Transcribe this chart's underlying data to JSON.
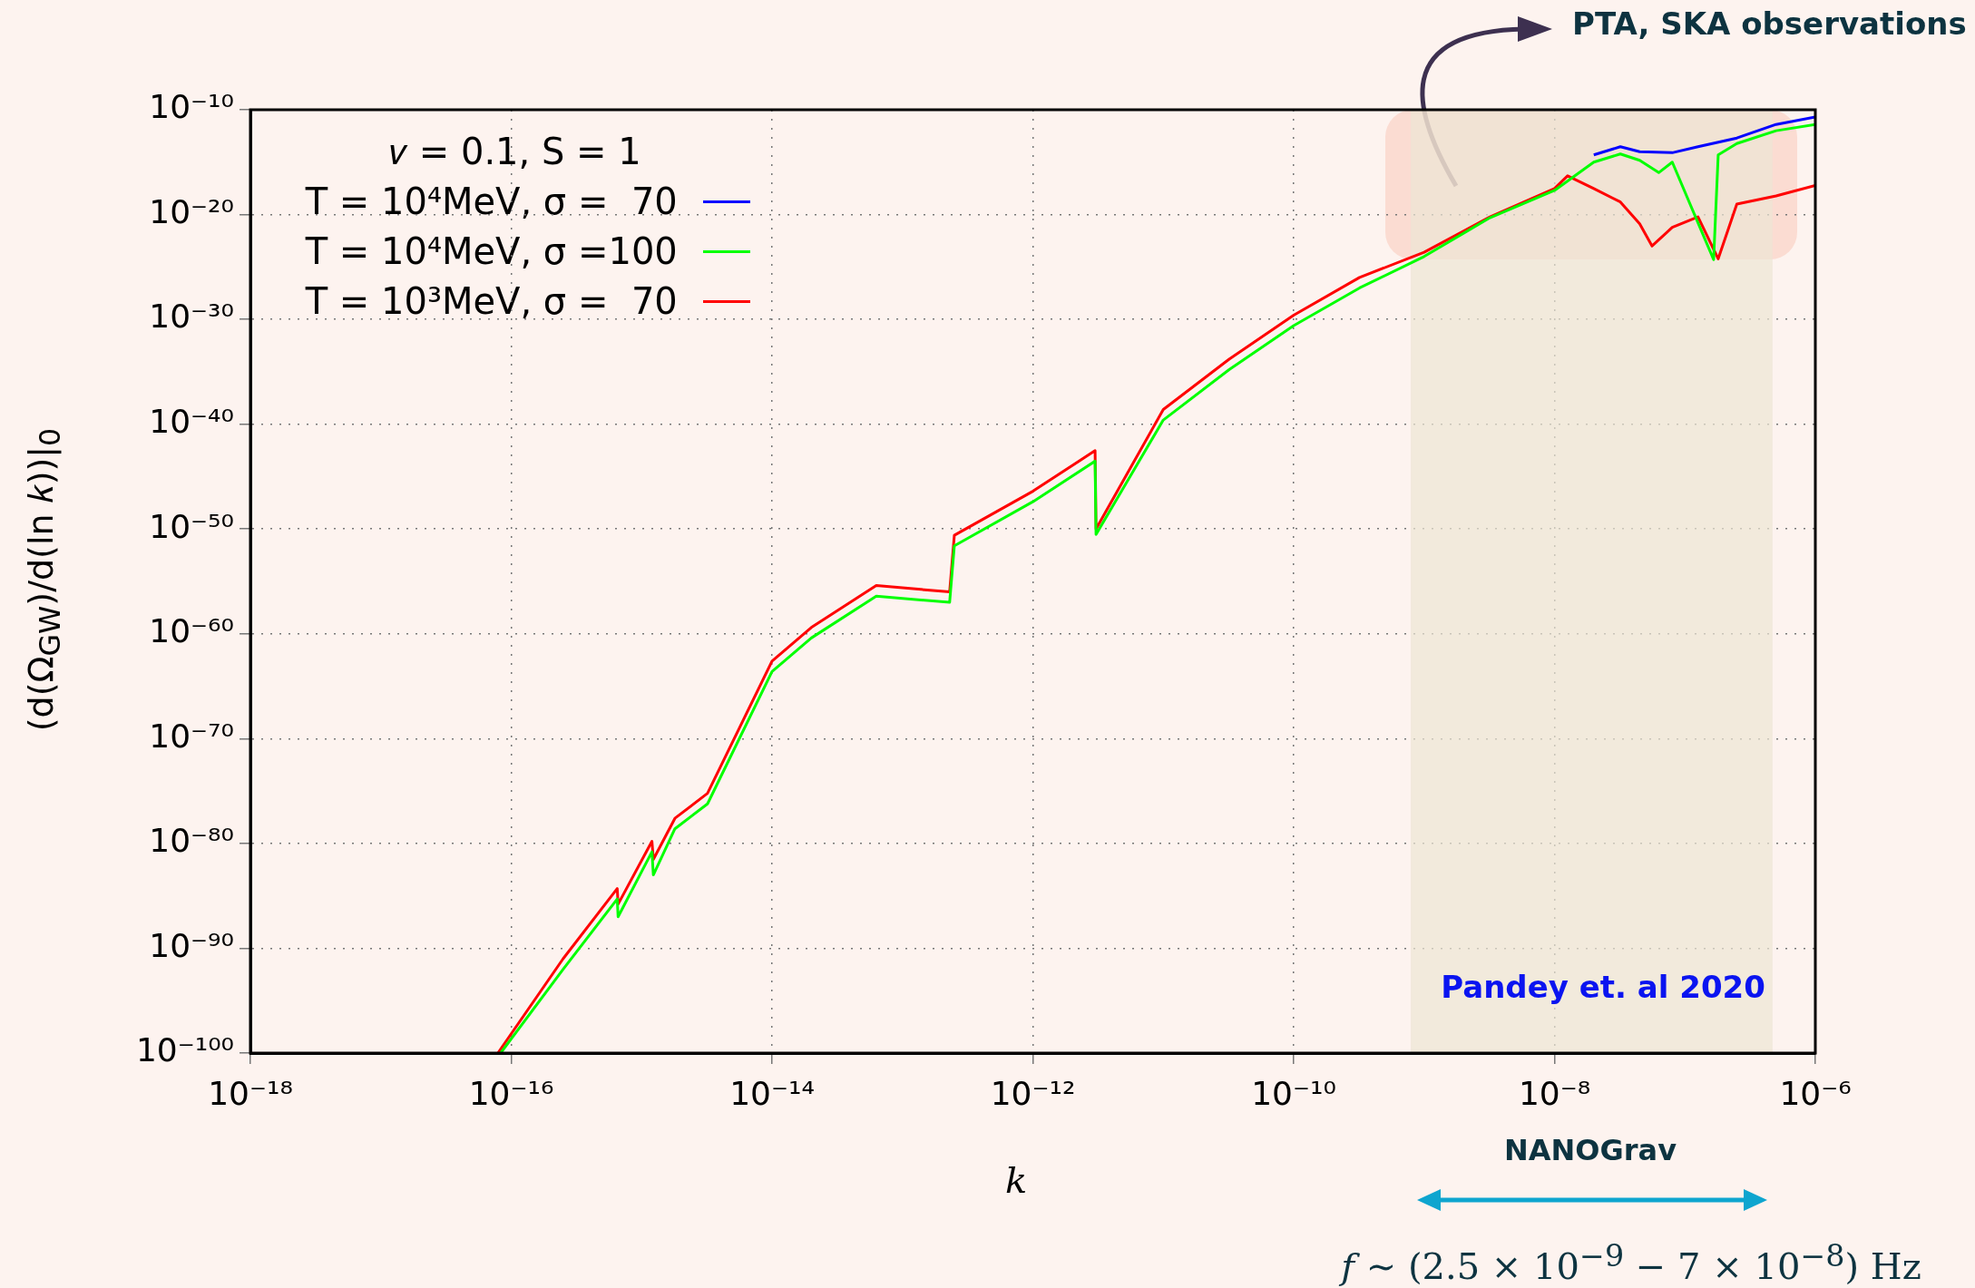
{
  "chart_data": {
    "type": "line",
    "xlabel": "𝑘",
    "ylabel": "(d(Ω$_{GW}$)/d(ln 𝑘))|$_{0}$",
    "legend_title": "𝑣 = 0.1, S = 1",
    "legend": "top left",
    "log": "xy",
    "grid": true,
    "marker": "none",
    "line_style": "solid",
    "xlim": [
      1e-18,
      1e-06
    ],
    "xticks": [
      {
        "value": 1e-18,
        "label": "10⁻¹⁸"
      },
      {
        "value": 1e-16,
        "label": "10⁻¹⁶"
      },
      {
        "value": 1e-14,
        "label": "10⁻¹⁴"
      },
      {
        "value": 1e-12,
        "label": "10⁻¹²"
      },
      {
        "value": 1e-10,
        "label": "10⁻¹⁰"
      },
      {
        "value": 1e-08,
        "label": "10⁻⁸"
      },
      {
        "value": 1e-06,
        "label": "10⁻⁶"
      }
    ],
    "ylim": [
      1e-100,
      1e-10
    ],
    "yticks": [
      {
        "value": 1e-100,
        "label": "10⁻¹⁰⁰"
      },
      {
        "value": 1e-90,
        "label": "10⁻⁹⁰"
      },
      {
        "value": 1e-80,
        "label": "10⁻⁸⁰"
      },
      {
        "value": 1e-70,
        "label": "10⁻⁷⁰"
      },
      {
        "value": 1e-60,
        "label": "10⁻⁶⁰"
      },
      {
        "value": 1e-50,
        "label": "10⁻⁵⁰"
      },
      {
        "value": 1e-40,
        "label": "10⁻⁴⁰"
      },
      {
        "value": 1e-30,
        "label": "10⁻³⁰"
      },
      {
        "value": 1e-20,
        "label": "10⁻²⁰"
      },
      {
        "value": 1e-10,
        "label": "10⁻¹⁰"
      }
    ],
    "series": [
      {
        "name": "T = 10⁴MeV, σ =  70",
        "color": "#0000ff",
        "x": [
          2e-08,
          3.2e-08,
          4.5e-08,
          8e-08,
          1.26e-07,
          2.5e-07,
          5e-07,
          1e-06
        ],
        "values": [
          5e-15,
          3e-14,
          1e-14,
          8e-15,
          3e-14,
          2e-13,
          4e-12,
          2e-11
        ]
      },
      {
        "name": "T = 10⁴MeV, σ =100",
        "color": "#00ff00",
        "x": [
          8.3e-17,
          2.5e-16,
          6.5e-16,
          6.6e-16,
          1.2e-15,
          1.23e-15,
          1.8e-15,
          3.2e-15,
          1e-14,
          2e-14,
          6.3e-14,
          2.3e-13,
          2.5e-13,
          1e-12,
          3e-12,
          3.05e-12,
          1e-11,
          3.2e-11,
          1e-10,
          3.2e-10,
          1e-09,
          3.2e-09,
          1e-08,
          2e-08,
          3.2e-08,
          4.5e-08,
          6.3e-08,
          8e-08,
          1.66e-07,
          1.8e-07,
          2.5e-07,
          5e-07,
          1e-06
        ],
        "values": [
          1e-100,
          1e-92,
          5e-86,
          1e-87,
          1.6e-81,
          1e-83,
          2.5e-79,
          6e-77,
          2.5e-64,
          4e-61,
          4e-57,
          1e-57,
          2.5e-52,
          4e-48,
          3e-44,
          3e-51,
          2.5e-40,
          1.6e-35,
          2.5e-31,
          1e-27,
          1e-24,
          5e-21,
          2e-18,
          1e-15,
          6e-15,
          1.5e-15,
          1e-16,
          1e-15,
          5e-25,
          5e-15,
          6e-14,
          1e-12,
          4e-12
        ]
      },
      {
        "name": "T = 10³MeV, σ =  70",
        "color": "#ff0000",
        "x": [
          7.9e-17,
          2.5e-16,
          6.5e-16,
          6.6e-16,
          1.2e-15,
          1.23e-15,
          1.8e-15,
          3.2e-15,
          1e-14,
          2e-14,
          6.3e-14,
          2.3e-13,
          2.5e-13,
          1e-12,
          3e-12,
          3.05e-12,
          1e-11,
          3.2e-11,
          1e-10,
          3.2e-10,
          1e-09,
          3.2e-09,
          1e-08,
          1.26e-08,
          2e-08,
          3.2e-08,
          4.5e-08,
          5.6e-08,
          8e-08,
          1.26e-07,
          1.8e-07,
          2.5e-07,
          5e-07,
          1e-06
        ],
        "values": [
          1e-100,
          1e-91,
          5e-85,
          1.6e-86,
          1.6e-80,
          3e-82,
          2.5e-78,
          6e-76,
          2.5e-63,
          4e-60,
          4e-56,
          1e-56,
          2.5e-51,
          4e-47,
          3e-43,
          1e-50,
          2.5e-39,
          1.6e-34,
          2.5e-30,
          1e-26,
          2.5e-24,
          6e-21,
          3e-18,
          5e-17,
          3e-18,
          1.6e-19,
          1.3e-21,
          1e-23,
          6e-22,
          6e-21,
          6e-25,
          1e-19,
          6e-19,
          6e-18
        ]
      }
    ],
    "bands": [
      {
        "axis": "x",
        "from": 7.9e-10,
        "to": 4.7e-07,
        "label": "Pandey et. al 2020",
        "color": "#ece6d4"
      }
    ],
    "annotations": [
      "PTA, SKA observations",
      "NANOGrav",
      "𝑓 ∼ (2.5 × 10$^{−9}$ − 7 × 10$^{−8}$) Hz"
    ]
  }
}
